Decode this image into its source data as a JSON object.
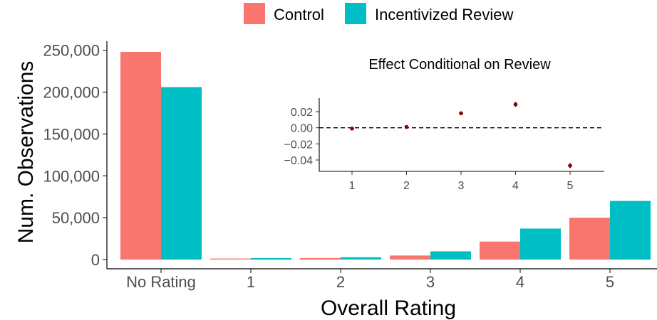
{
  "chart_data": [
    {
      "type": "bar",
      "xlabel": "Overall Rating",
      "ylabel": "Num. Observations",
      "categories": [
        "No Rating",
        "1",
        "2",
        "3",
        "4",
        "5"
      ],
      "ylim": [
        0,
        262000
      ],
      "yticks": [
        0,
        50000,
        100000,
        150000,
        200000,
        250000
      ],
      "ytick_labels": [
        "0",
        "50,000",
        "100,000",
        "150,000",
        "200,000",
        "250,000"
      ],
      "series": [
        {
          "name": "Control",
          "color": "#F8766D",
          "values": [
            248000,
            1200,
            1800,
            4800,
            21500,
            50000
          ]
        },
        {
          "name": "Incentivized Review",
          "color": "#00BFC4",
          "values": [
            206000,
            1800,
            2800,
            9800,
            37000,
            70000
          ]
        }
      ],
      "legend_position": "top",
      "grid": false
    },
    {
      "type": "scatter",
      "title": "Effect Conditional on Review",
      "x": [
        "1",
        "2",
        "3",
        "4",
        "5"
      ],
      "y": [
        -0.001,
        0.001,
        0.018,
        0.029,
        -0.047
      ],
      "error": [
        0.001,
        0.001,
        0.002,
        0.003,
        0.003
      ],
      "ylim": [
        -0.055,
        0.035
      ],
      "yticks": [
        0.02,
        0.0,
        -0.02,
        -0.04
      ],
      "ytick_labels": [
        "0.02",
        "0.00",
        "−0.02",
        "−0.04"
      ],
      "reference_line": 0,
      "point_color": "#8B0000",
      "grid": false
    }
  ]
}
